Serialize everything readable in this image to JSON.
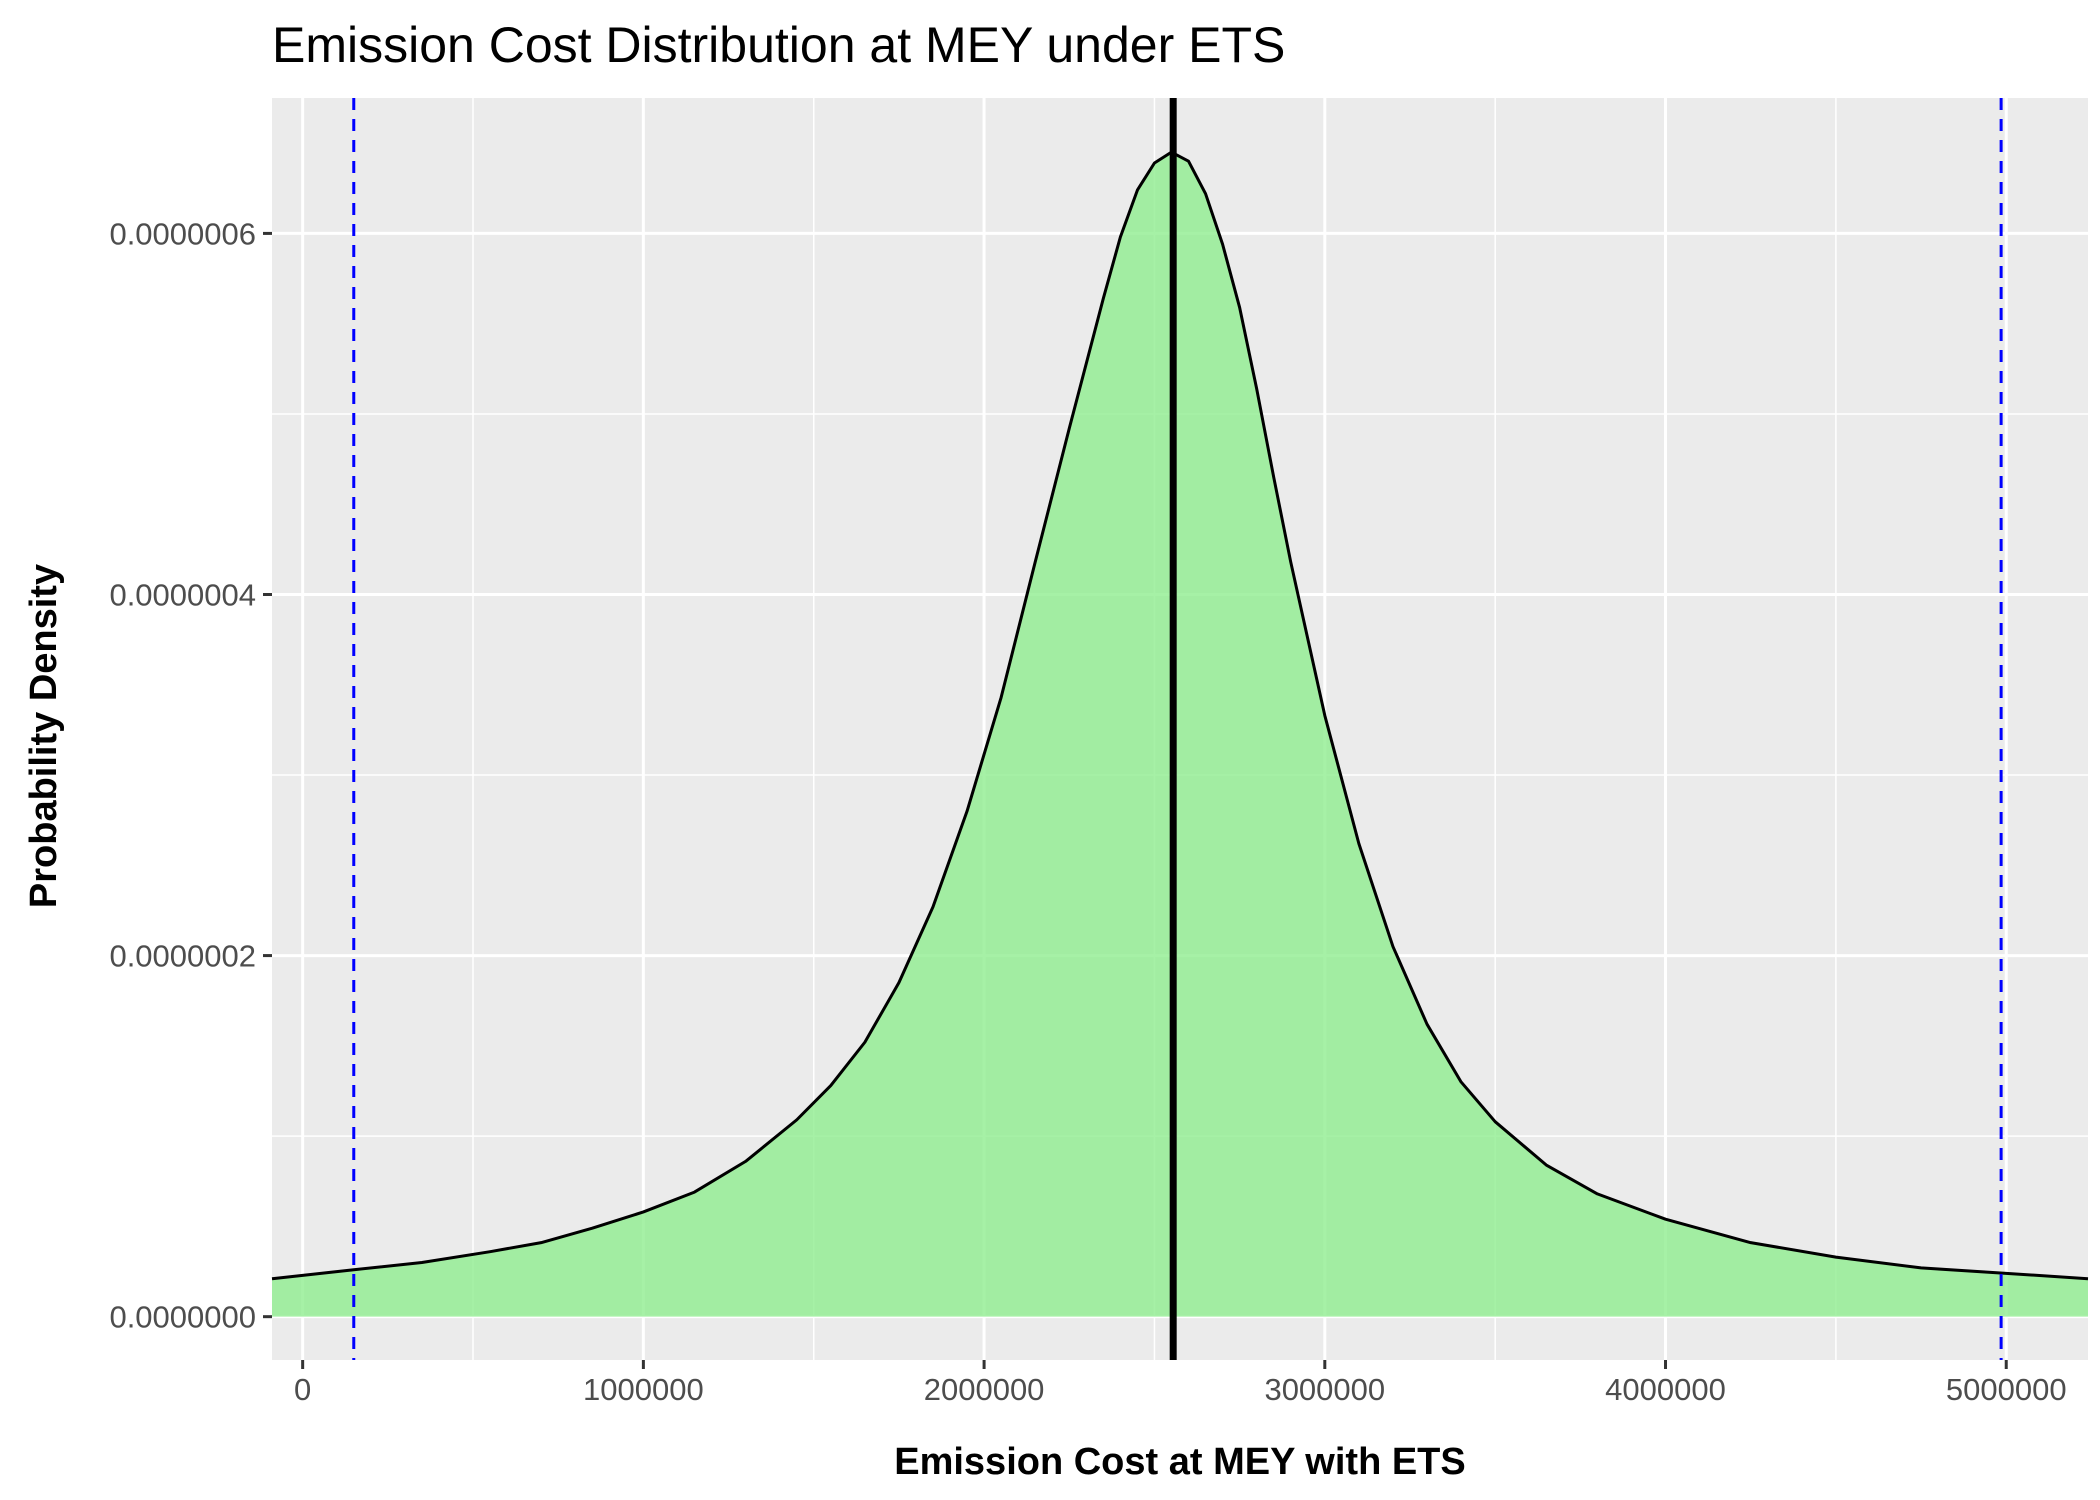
{
  "chart_data": {
    "type": "area",
    "title": "Emission Cost Distribution at MEY under ETS",
    "xlabel": "Emission Cost at MEY with ETS",
    "ylabel": "Probability Density",
    "xlim": [
      -90000,
      5240000
    ],
    "ylim": [
      -2.4e-08,
      6.75e-07
    ],
    "x_ticks": [
      {
        "value": 0,
        "label": "0"
      },
      {
        "value": 1000000,
        "label": "1000000"
      },
      {
        "value": 2000000,
        "label": "2000000"
      },
      {
        "value": 3000000,
        "label": "3000000"
      },
      {
        "value": 4000000,
        "label": "4000000"
      },
      {
        "value": 5000000,
        "label": "5000000"
      }
    ],
    "y_ticks": [
      {
        "value": 0,
        "label": "0.0000000"
      },
      {
        "value": 2e-07,
        "label": "0.0000002"
      },
      {
        "value": 4e-07,
        "label": "0.0000004"
      },
      {
        "value": 6e-07,
        "label": "0.0000006"
      }
    ],
    "grid": true,
    "fill_color": "#90EE90",
    "line_color": "#000000",
    "series": [
      {
        "x": [
          -90000,
          150000,
          350000,
          550000,
          700000,
          850000,
          1000000,
          1150000,
          1300000,
          1450000,
          1550000,
          1650000,
          1750000,
          1850000,
          1950000,
          2050000,
          2150000,
          2250000,
          2350000,
          2400000,
          2450000,
          2500000,
          2550000,
          2600000,
          2650000,
          2700000,
          2750000,
          2800000,
          2850000,
          2900000,
          3000000,
          3100000,
          3200000,
          3300000,
          3400000,
          3500000,
          3650000,
          3800000,
          4000000,
          4250000,
          4500000,
          4750000,
          5000000,
          5240000
        ],
        "y": [
          2.1e-08,
          2.6e-08,
          3e-08,
          3.6e-08,
          4.1e-08,
          4.9e-08,
          5.8e-08,
          6.9e-08,
          8.6e-08,
          1.09e-07,
          1.28e-07,
          1.52e-07,
          1.85e-07,
          2.27e-07,
          2.8e-07,
          3.43e-07,
          4.18e-07,
          4.92e-07,
          5.64e-07,
          5.98e-07,
          6.24e-07,
          6.39e-07,
          6.45e-07,
          6.4e-07,
          6.22e-07,
          5.94e-07,
          5.59e-07,
          5.14e-07,
          4.65e-07,
          4.18e-07,
          3.33e-07,
          2.62e-07,
          2.05e-07,
          1.62e-07,
          1.3e-07,
          1.08e-07,
          8.4e-08,
          6.8e-08,
          5.4e-08,
          4.1e-08,
          3.3e-08,
          2.7e-08,
          2.4e-08,
          2.1e-08
        ]
      }
    ],
    "vlines": [
      {
        "x": 2555000,
        "style": "solid",
        "color": "#000000"
      },
      {
        "x": 150000,
        "style": "dashed",
        "color": "#0000FF"
      },
      {
        "x": 4985000,
        "style": "dashed",
        "color": "#0000FF"
      }
    ]
  }
}
